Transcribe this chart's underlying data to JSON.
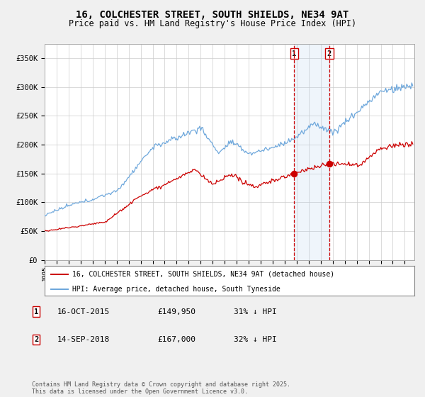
{
  "title": "16, COLCHESTER STREET, SOUTH SHIELDS, NE34 9AT",
  "subtitle": "Price paid vs. HM Land Registry's House Price Index (HPI)",
  "title_fontsize": 10,
  "subtitle_fontsize": 8.5,
  "ylabel_ticks": [
    "£0",
    "£50K",
    "£100K",
    "£150K",
    "£200K",
    "£250K",
    "£300K",
    "£350K"
  ],
  "ytick_values": [
    0,
    50000,
    100000,
    150000,
    200000,
    250000,
    300000,
    350000
  ],
  "ylim": [
    0,
    375000
  ],
  "xlim_start": 1995.0,
  "xlim_end": 2025.8,
  "hpi_color": "#6fa8dc",
  "price_color": "#cc0000",
  "point1_date": 2015.79,
  "point1_value": 149950,
  "point2_date": 2018.71,
  "point2_value": 167000,
  "vline1_x": 2015.79,
  "vline2_x": 2018.71,
  "shade_x1": 2015.79,
  "shade_x2": 2018.71,
  "legend_label_red": "16, COLCHESTER STREET, SOUTH SHIELDS, NE34 9AT (detached house)",
  "legend_label_blue": "HPI: Average price, detached house, South Tyneside",
  "table_row1": [
    "1",
    "16-OCT-2015",
    "£149,950",
    "31% ↓ HPI"
  ],
  "table_row2": [
    "2",
    "14-SEP-2018",
    "£167,000",
    "32% ↓ HPI"
  ],
  "footnote": "Contains HM Land Registry data © Crown copyright and database right 2025.\nThis data is licensed under the Open Government Licence v3.0.",
  "background_color": "#f0f0f0",
  "plot_bg_color": "#ffffff",
  "grid_color": "#cccccc"
}
